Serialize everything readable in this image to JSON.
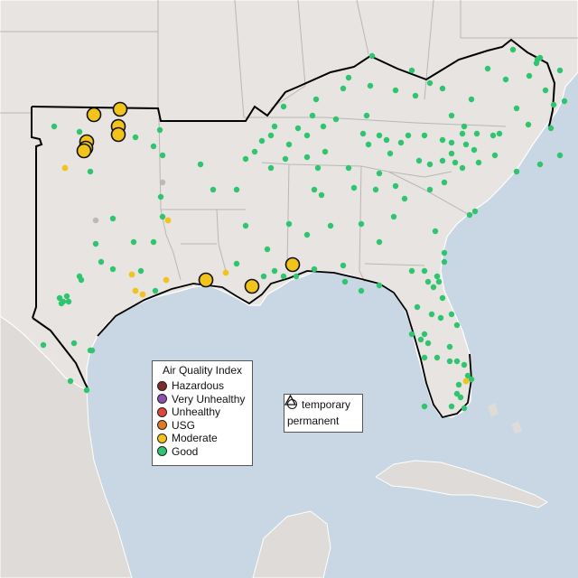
{
  "map": {
    "colors": {
      "ocean": "#c9d6e3",
      "land": "#e7e4e1",
      "land_foreign": "#dedbd8",
      "state_border": "#b9b7b5",
      "region_border": "#000000",
      "coast": "#ffffff"
    }
  },
  "legend": {
    "title": "Air Quality Index",
    "categories": [
      {
        "label": "Hazardous",
        "color": "#7e2b2b"
      },
      {
        "label": "Very Unhealthy",
        "color": "#8f4fb0"
      },
      {
        "label": "Unhealthy",
        "color": "#e0453a"
      },
      {
        "label": "USG",
        "color": "#e07a25"
      },
      {
        "label": "Moderate",
        "color": "#f2c41b"
      },
      {
        "label": "Good",
        "color": "#2dc66f"
      }
    ]
  },
  "monitor_type_legend": {
    "items": [
      {
        "label": "temporary",
        "icon": "circle-icon"
      },
      {
        "label": "permanent",
        "icon": "triangle-icon"
      }
    ]
  },
  "monitors": {
    "large_moderate_count": 11,
    "small_moderate_count": 8,
    "good_count": 300,
    "no_data_color": "#b9b9b9"
  }
}
